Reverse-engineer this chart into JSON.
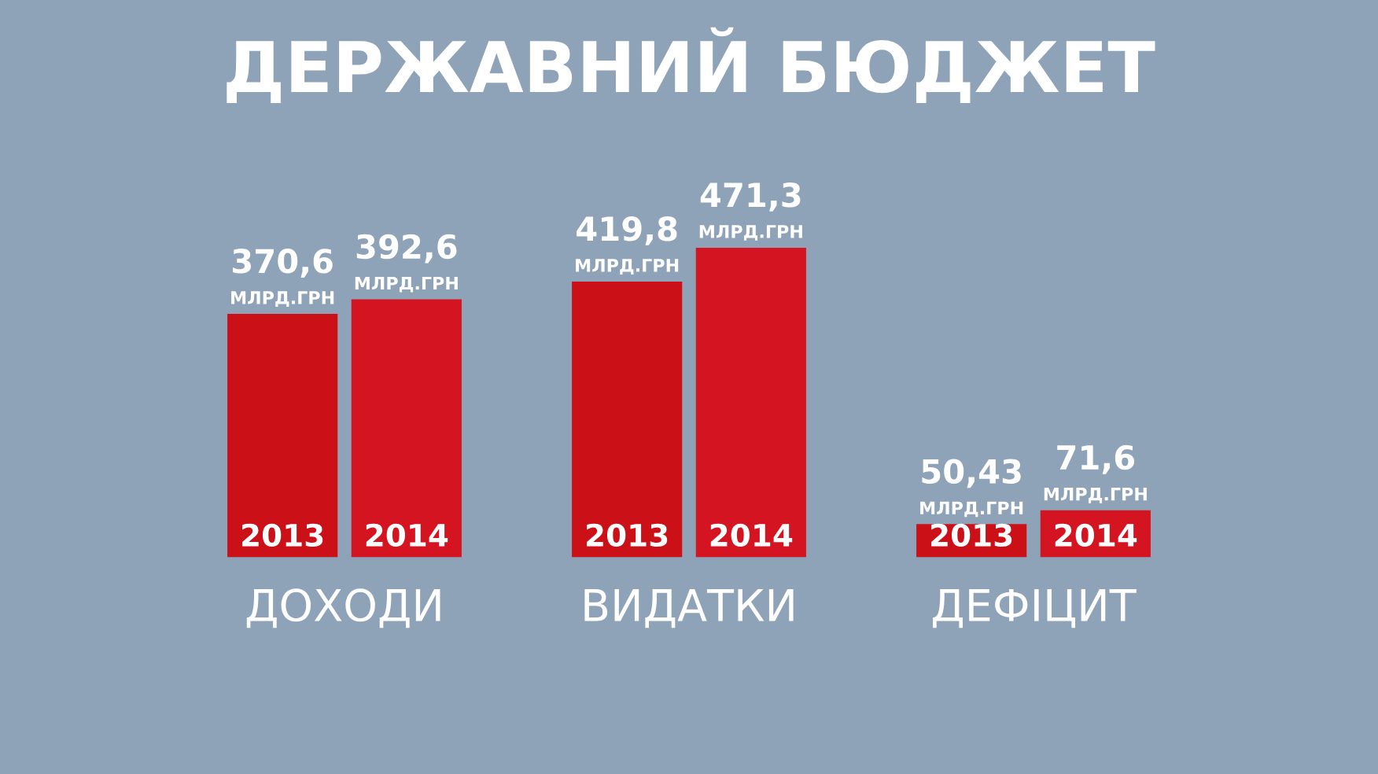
{
  "chart_data": {
    "type": "bar",
    "title": "ДЕРЖАВНИЙ БЮДЖЕТ",
    "categories": [
      "ДОХОДИ",
      "ВИДАТКИ",
      "ДЕФІЦИТ"
    ],
    "series": [
      {
        "name": "2013",
        "color": "#cc1018",
        "values": [
          370.6,
          419.8,
          50.43
        ],
        "value_labels": [
          "370,6",
          "419,8",
          "50,43"
        ]
      },
      {
        "name": "2014",
        "color": "#d41420",
        "values": [
          392.6,
          471.3,
          71.6
        ],
        "value_labels": [
          "392,6",
          "471,3",
          "71,6"
        ]
      }
    ],
    "annotations": [
      "МЛРД.ГРН"
    ],
    "grid": false,
    "legend": false
  }
}
